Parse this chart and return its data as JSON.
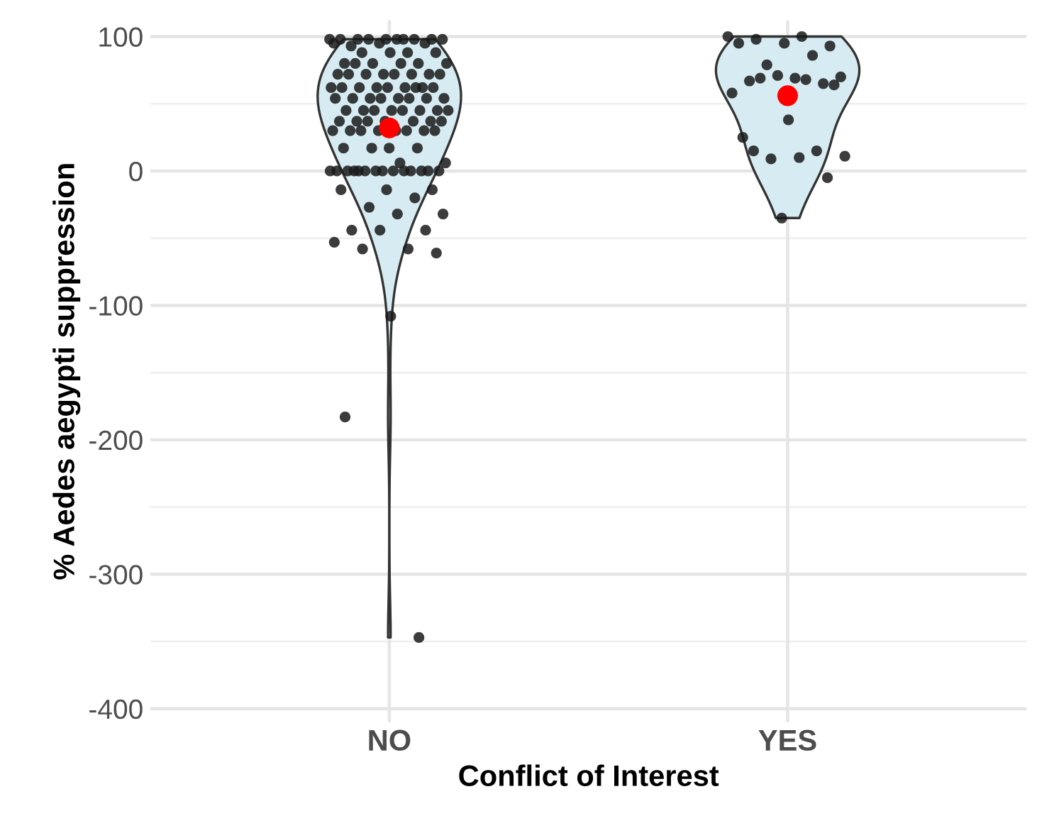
{
  "chart_data": {
    "type": "scatter",
    "xlabel": "Conflict of Interest",
    "ylabel": "% Aedes aegypti suppression",
    "categories": [
      "NO",
      "YES"
    ],
    "ylim": [
      -410,
      112
    ],
    "yticks": [
      -400,
      -300,
      -200,
      -100,
      0,
      100
    ],
    "grid": true,
    "marker": "circle",
    "series": [
      {
        "color": "#1a1a1a",
        "x": [
          "NO",
          "NO",
          "NO",
          "NO",
          "NO",
          "NO",
          "NO",
          "NO",
          "NO",
          "NO",
          "NO",
          "NO",
          "NO",
          "NO",
          "NO",
          "NO",
          "NO",
          "NO",
          "NO",
          "NO",
          "NO",
          "NO",
          "NO",
          "NO",
          "NO",
          "NO",
          "NO",
          "NO",
          "NO",
          "NO",
          "NO",
          "NO",
          "NO",
          "NO",
          "NO",
          "NO",
          "NO",
          "NO",
          "NO",
          "NO",
          "NO",
          "NO",
          "NO",
          "NO",
          "NO",
          "NO",
          "NO",
          "NO",
          "NO",
          "NO",
          "NO",
          "NO",
          "NO",
          "NO",
          "NO",
          "NO",
          "NO",
          "NO",
          "NO",
          "NO",
          "NO",
          "NO",
          "NO",
          "NO",
          "NO",
          "NO",
          "NO",
          "NO",
          "NO",
          "NO",
          "NO",
          "NO",
          "NO",
          "NO",
          "NO",
          "NO",
          "NO",
          "NO",
          "NO",
          "NO",
          "NO",
          "NO",
          "NO",
          "NO",
          "NO",
          "NO",
          "NO",
          "NO",
          "NO",
          "NO",
          "NO",
          "NO",
          "NO",
          "NO",
          "NO",
          "NO",
          "NO",
          "NO",
          "NO",
          "NO",
          "NO",
          "NO",
          "NO",
          "NO",
          "NO",
          "NO",
          "NO",
          "NO",
          "NO"
        ],
        "values": [
          98,
          98,
          98,
          98,
          98,
          98,
          98,
          98,
          98,
          98,
          93,
          95,
          95,
          95,
          88,
          88,
          88,
          88,
          80,
          80,
          80,
          80,
          80,
          80,
          72,
          72,
          72,
          72,
          72,
          72,
          72,
          72,
          62,
          62,
          62,
          62,
          62,
          62,
          62,
          62,
          62,
          54,
          54,
          54,
          54,
          54,
          54,
          54,
          54,
          45,
          45,
          45,
          45,
          45,
          45,
          45,
          45,
          37,
          37,
          37,
          37,
          37,
          37,
          37,
          30,
          30,
          30,
          30,
          30,
          30,
          30,
          30,
          17,
          17,
          17,
          17,
          6,
          6,
          0,
          0,
          0,
          0,
          0,
          0,
          0,
          0,
          0,
          0,
          0,
          0,
          0,
          0,
          -14,
          -14,
          -14,
          -20,
          -27,
          -32,
          -32,
          -44,
          -44,
          -44,
          -53,
          -58,
          -58,
          -61,
          -108,
          -183,
          -347
        ]
      },
      {
        "color": "#1a1a1a",
        "x": [
          "YES",
          "YES",
          "YES",
          "YES",
          "YES",
          "YES",
          "YES",
          "YES",
          "YES",
          "YES",
          "YES",
          "YES",
          "YES",
          "YES",
          "YES",
          "YES",
          "YES",
          "YES",
          "YES",
          "YES",
          "YES",
          "YES",
          "YES",
          "YES",
          "YES",
          "YES"
        ],
        "values": [
          100,
          100,
          98,
          93,
          95,
          95,
          86,
          79,
          70,
          69,
          67,
          65,
          71,
          58,
          68,
          69,
          64,
          38,
          25,
          15,
          9,
          11,
          10,
          15,
          -5,
          -35
        ]
      },
      {
        "color": "#ff0000",
        "x": [
          "NO",
          "YES"
        ],
        "values": [
          32,
          56
        ]
      }
    ]
  }
}
